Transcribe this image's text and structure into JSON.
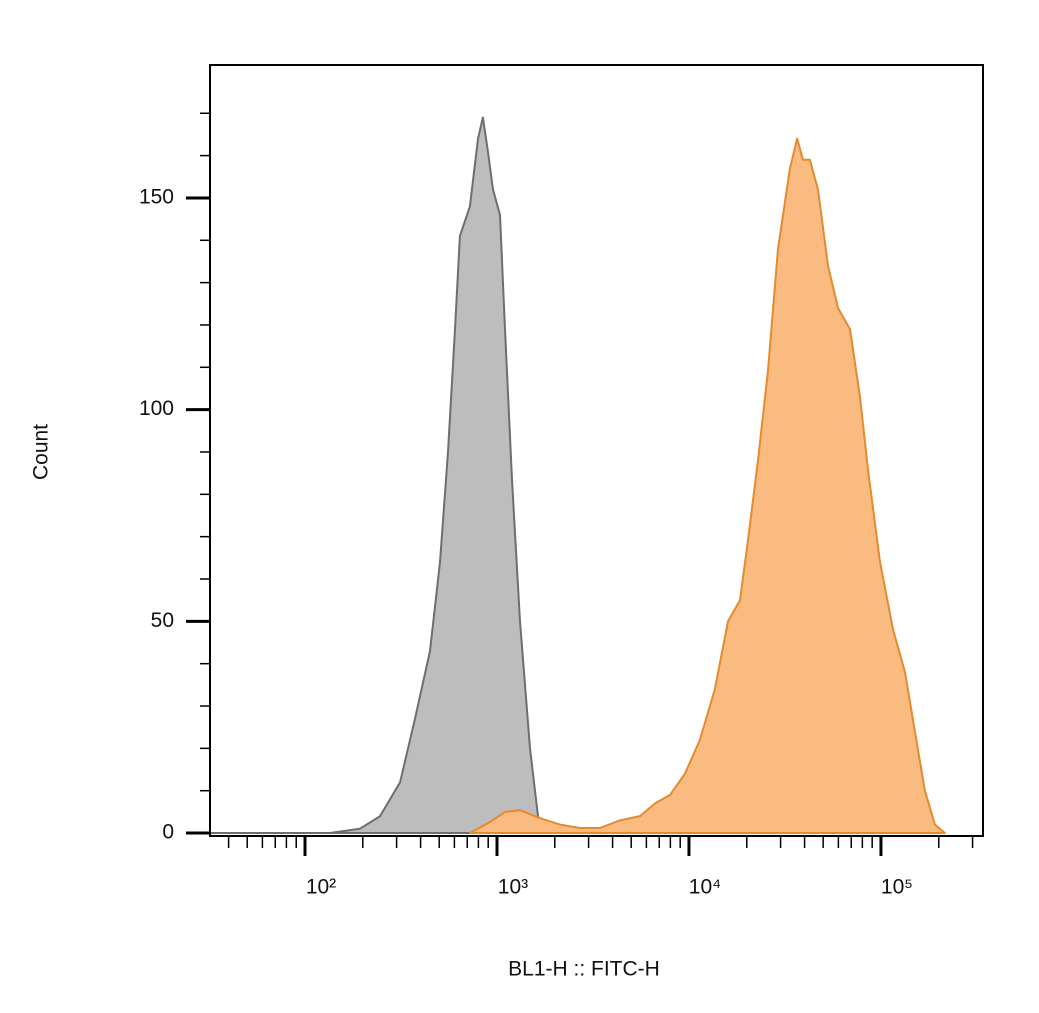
{
  "chart_data": {
    "type": "area",
    "xlabel": "BL1-H :: FITC-H",
    "ylabel": "Count",
    "xscale": "log",
    "xlim": [
      32,
      340000
    ],
    "ylim": [
      -0.7,
      181.4
    ],
    "xticks": [
      {
        "value": 100,
        "label": "10²"
      },
      {
        "value": 1000,
        "label": "10³"
      },
      {
        "value": 10000,
        "label": "10⁴"
      },
      {
        "value": 100000,
        "label": "10⁵"
      }
    ],
    "xminorticks": [
      40,
      50,
      60,
      70,
      80,
      90,
      200,
      300,
      400,
      500,
      600,
      700,
      800,
      900,
      2000,
      3000,
      4000,
      5000,
      6000,
      7000,
      8000,
      9000,
      20000,
      30000,
      40000,
      50000,
      60000,
      70000,
      80000,
      90000,
      200000,
      300000
    ],
    "yticks": [
      0,
      50,
      100,
      150
    ],
    "yminorticks": [
      10,
      20,
      30,
      40,
      60,
      70,
      80,
      90,
      110,
      120,
      130,
      140,
      160,
      170
    ],
    "series": [
      {
        "color": "#bdbdbd",
        "edgecolor": "#6e6e6e",
        "x": [
          32,
          135,
          193,
          246,
          313,
          374,
          448,
          505,
          556,
          604,
          641,
          723,
          796,
          845,
          897,
          953,
          1037,
          1101,
          1198,
          1318,
          1485,
          1636,
          1778
        ],
        "values": [
          0,
          0,
          1,
          4,
          12,
          27,
          43,
          64,
          90,
          119,
          141,
          148,
          164,
          169,
          161,
          152,
          146,
          119,
          83,
          50,
          20,
          4,
          0
        ]
      },
      {
        "color": "#f9bb80",
        "edgecolor": "#e58a2e",
        "x": [
          723,
          920,
          1101,
          1318,
          1675,
          2130,
          2705,
          3436,
          4372,
          5559,
          6653,
          7962,
          9527,
          11400,
          13640,
          15960,
          18450,
          20280,
          22870,
          25760,
          29090,
          33570,
          36560,
          39270,
          42660,
          46990,
          52970,
          59700,
          69020,
          77800,
          85500,
          98860,
          115600,
          133400,
          150300,
          169400,
          191000,
          215300
        ],
        "values": [
          0,
          2.6,
          5,
          5.4,
          3.5,
          2,
          1.2,
          1.2,
          3,
          4,
          7,
          9,
          14,
          22,
          34,
          50,
          55,
          69,
          88,
          109,
          138,
          157,
          164,
          159,
          159,
          152,
          134,
          124,
          119,
          103,
          86,
          64,
          48,
          38,
          24,
          10,
          2,
          0
        ]
      }
    ]
  }
}
